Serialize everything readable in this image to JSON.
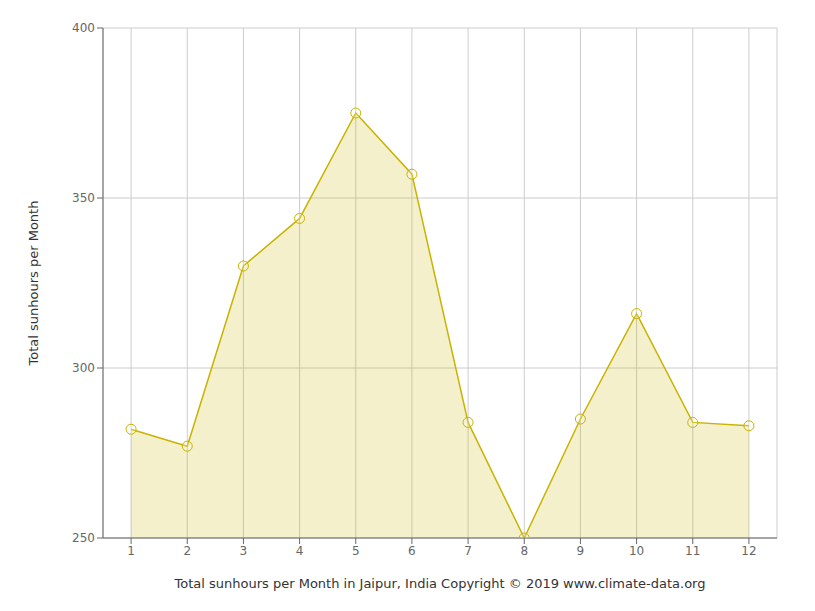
{
  "chart_data": {
    "type": "area",
    "xlabel": "Total sunhours per Month in Jaipur, India Copyright © 2019 www.climate-data.org",
    "ylabel": "Total sunhours per Month",
    "x": [
      1,
      2,
      3,
      4,
      5,
      6,
      7,
      8,
      9,
      10,
      11,
      12
    ],
    "values": [
      282,
      277,
      330,
      344,
      375,
      357,
      284,
      250,
      285,
      316,
      284,
      283
    ],
    "color": "#C8B400",
    "marker": "circle",
    "xlim": [
      0.5,
      12.5
    ],
    "xticks": [
      1,
      2,
      3,
      4,
      5,
      6,
      7,
      8,
      9,
      10,
      11,
      12
    ],
    "ylim": [
      250,
      400
    ],
    "yticks": [
      250,
      300,
      350,
      400
    ],
    "grid": true
  }
}
